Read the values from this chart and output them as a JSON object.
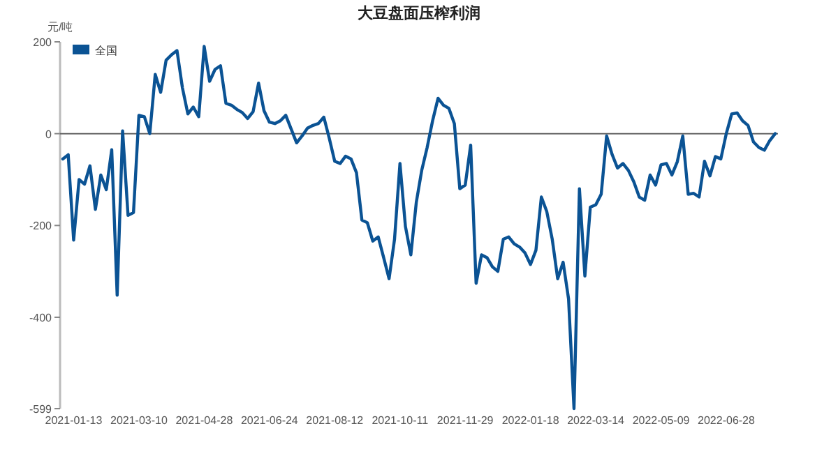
{
  "chart_data": {
    "type": "line",
    "title": "大豆盘面压榨利润",
    "ylabel": "元/吨",
    "categories": [
      null,
      null,
      "2021-01-13",
      null,
      null,
      null,
      null,
      null,
      null,
      null,
      null,
      null,
      null,
      null,
      "2021-03-10",
      null,
      null,
      null,
      null,
      null,
      null,
      null,
      null,
      null,
      null,
      null,
      "2021-04-28",
      null,
      null,
      null,
      null,
      null,
      null,
      null,
      null,
      null,
      null,
      null,
      "2021-06-24",
      null,
      null,
      null,
      null,
      null,
      null,
      null,
      null,
      null,
      null,
      null,
      "2021-08-12",
      null,
      null,
      null,
      null,
      null,
      null,
      null,
      null,
      null,
      null,
      null,
      "2021-10-11",
      null,
      null,
      null,
      null,
      null,
      null,
      null,
      null,
      null,
      null,
      null,
      "2021-11-29",
      null,
      null,
      null,
      null,
      null,
      null,
      null,
      null,
      null,
      null,
      null,
      "2022-01-18",
      null,
      null,
      null,
      null,
      null,
      null,
      null,
      null,
      null,
      null,
      null,
      "2022-03-14",
      null,
      null,
      null,
      null,
      null,
      null,
      null,
      null,
      null,
      null,
      null,
      "2022-05-09",
      null,
      null,
      null,
      null,
      null,
      null,
      null,
      null,
      null,
      null,
      null,
      "2022-06-28",
      null,
      null,
      null,
      null,
      null,
      null,
      null,
      null,
      null
    ],
    "series": [
      {
        "name": "全国",
        "color": "#0b5394",
        "values": [
          -55,
          -46,
          -232,
          -100,
          -110,
          -70,
          -165,
          -90,
          -122,
          -35,
          -352,
          6,
          -178,
          -172,
          40,
          37,
          0,
          129,
          90,
          160,
          172,
          181,
          100,
          43,
          58,
          37,
          190,
          114,
          140,
          148,
          66,
          62,
          53,
          46,
          33,
          48,
          110,
          50,
          25,
          22,
          28,
          40,
          10,
          -20,
          -5,
          12,
          18,
          22,
          36,
          -10,
          -60,
          -65,
          -49,
          -55,
          -85,
          -188,
          -194,
          -234,
          -225,
          -270,
          -316,
          -230,
          -65,
          -202,
          -264,
          -150,
          -80,
          -30,
          28,
          77,
          62,
          55,
          22,
          -120,
          -112,
          -25,
          -326,
          -264,
          -270,
          -290,
          -300,
          -230,
          -225,
          -240,
          -247,
          -260,
          -285,
          -254,
          -138,
          -170,
          -230,
          -316,
          -280,
          -360,
          -599,
          -120,
          -310,
          -160,
          -155,
          -132,
          -5,
          -45,
          -75,
          -65,
          -80,
          -105,
          -138,
          -145,
          -90,
          -112,
          -68,
          -65,
          -90,
          -61,
          -5,
          -132,
          -130,
          -138,
          -60,
          -92,
          -50,
          -55,
          0,
          43,
          45,
          28,
          18,
          -18,
          -30,
          -36,
          -15,
          0
        ]
      }
    ],
    "ylim": [
      -599,
      200
    ],
    "yticks": [
      200,
      0,
      -200,
      -400,
      -599
    ],
    "ref_lines": [
      {
        "axis": "y",
        "value": 0,
        "color": "#666666"
      }
    ],
    "legend": "top left"
  }
}
